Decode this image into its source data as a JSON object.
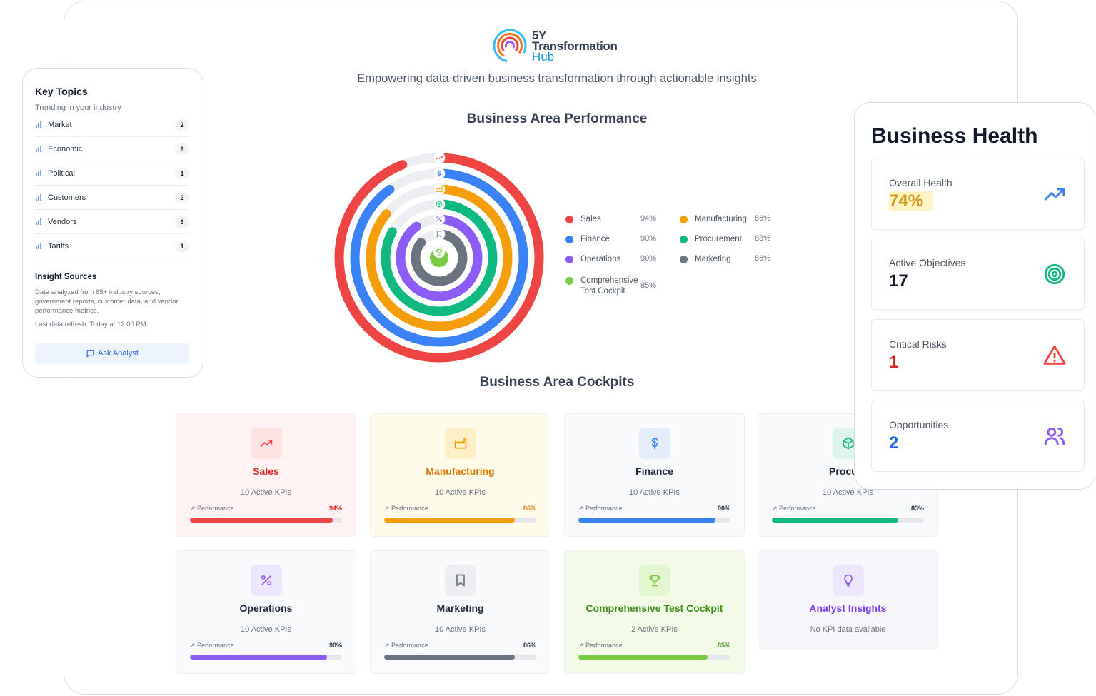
{
  "logo": {
    "line1": "5Y",
    "line2": "Transformation",
    "line3": "Hub"
  },
  "tagline": "Empowering data-driven business transformation through actionable insights",
  "performance_title": "Business Area Performance",
  "cockpits_title": "Business Area Cockpits",
  "chart_data": {
    "type": "radial-bar",
    "title": "Business Area Performance",
    "ylim": [
      0,
      100
    ],
    "series": [
      {
        "name": "Sales",
        "value": 94,
        "value_label": "94%",
        "color": "#ef4444",
        "icon": "trending-up-icon"
      },
      {
        "name": "Finance",
        "value": 90,
        "value_label": "90%",
        "color": "#3b82f6",
        "icon": "dollar-icon"
      },
      {
        "name": "Manufacturing",
        "value": 86,
        "value_label": "86%",
        "color": "#f59e0b",
        "icon": "factory-icon"
      },
      {
        "name": "Procurement",
        "value": 83,
        "value_label": "83%",
        "color": "#10b981",
        "icon": "box-icon"
      },
      {
        "name": "Operations",
        "value": 90,
        "value_label": "90%",
        "color": "#8b5cf6",
        "icon": "percent-icon"
      },
      {
        "name": "Marketing",
        "value": 86,
        "value_label": "86%",
        "color": "#6b7280",
        "icon": "bookmark-icon"
      },
      {
        "name": "Comprehensive Test Cockpit",
        "value": 85,
        "value_label": "85%",
        "color": "#7ac943",
        "icon": "trophy-icon"
      }
    ],
    "legend": [
      {
        "label": "Sales",
        "value": "94%",
        "color": "#ef4444"
      },
      {
        "label": "Manufacturing",
        "value": "86%",
        "color": "#f59e0b"
      },
      {
        "label": "Finance",
        "value": "90%",
        "color": "#3b82f6"
      },
      {
        "label": "Procurement",
        "value": "83%",
        "color": "#10b981"
      },
      {
        "label": "Operations",
        "value": "90%",
        "color": "#8b5cf6"
      },
      {
        "label": "Marketing",
        "value": "86%",
        "color": "#6b7280"
      },
      {
        "label": "Comprehensive Test Cockpit",
        "value": "85%",
        "color": "#7ac943"
      }
    ]
  },
  "cockpits": [
    {
      "title": "Sales",
      "kpis": "10 Active KPIs",
      "perf_label": "Performance",
      "perf_value": "94%",
      "perf": 94,
      "color": "#ef4444",
      "title_color": "#dc2626",
      "bg": "#fef2f2",
      "icon_bg": "#fde2e2",
      "icon": "trending-up-icon"
    },
    {
      "title": "Manufacturing",
      "kpis": "10 Active KPIs",
      "perf_label": "Performance",
      "perf_value": "86%",
      "perf": 86,
      "color": "#f59e0b",
      "title_color": "#d97706",
      "bg": "#fffbeb",
      "icon_bg": "#fdf0c8",
      "icon": "factory-icon"
    },
    {
      "title": "Finance",
      "kpis": "10 Active KPIs",
      "perf_label": "Performance",
      "perf_value": "90%",
      "perf": 90,
      "color": "#3b82f6",
      "title_color": "#1f2937",
      "bg": "#f8fafc",
      "icon_bg": "#e5edfb",
      "icon": "dollar-icon"
    },
    {
      "title": "Procure",
      "kpis": "10 Active KPIs",
      "perf_label": "Performance",
      "perf_value": "83%",
      "perf": 83,
      "color": "#10b981",
      "title_color": "#1f2937",
      "bg": "#f8fafc",
      "icon_bg": "#dff5ec",
      "icon": "box-icon"
    },
    {
      "title": "Operations",
      "kpis": "10 Active KPIs",
      "perf_label": "Performance",
      "perf_value": "90%",
      "perf": 90,
      "color": "#8b5cf6",
      "title_color": "#1f2937",
      "bg": "#f8fafc",
      "icon_bg": "#ede7fd",
      "icon": "percent-icon"
    },
    {
      "title": "Marketing",
      "kpis": "10 Active KPIs",
      "perf_label": "Performance",
      "perf_value": "86%",
      "perf": 86,
      "color": "#6b7280",
      "title_color": "#1f2937",
      "bg": "#f8fafc",
      "icon_bg": "#eceef1",
      "icon": "bookmark-icon"
    },
    {
      "title": "Comprehensive Test Cockpit",
      "kpis": "2 Active KPIs",
      "perf_label": "Performance",
      "perf_value": "85%",
      "perf": 85,
      "color": "#7ac943",
      "title_color": "#3f8a1c",
      "bg": "#f3fbe8",
      "icon_bg": "#e3f6cf",
      "icon": "trophy-icon"
    },
    {
      "title": "Analyst Insights",
      "kpis": "No KPI data available",
      "color": "#8b5cf6",
      "title_color": "#7c3aed",
      "bg": "#f7f7fb",
      "icon_bg": "#ede7fd",
      "icon": "lightbulb-icon"
    }
  ],
  "key_topics": {
    "title": "Key Topics",
    "subtitle": "Trending in your industry",
    "items": [
      {
        "label": "Market",
        "count": "2"
      },
      {
        "label": "Economic",
        "count": "6"
      },
      {
        "label": "Political",
        "count": "1"
      },
      {
        "label": "Customers",
        "count": "2"
      },
      {
        "label": "Vendors",
        "count": "3"
      },
      {
        "label": "Tariffs",
        "count": "1"
      }
    ],
    "insight_title": "Insight Sources",
    "insight_desc": "Data analyzed from 65+ industry sources, government reports, customer data, and vendor performance metrics.",
    "refresh": "Last data refresh: Today at 12:00 PM",
    "ask_label": "Ask Analyst"
  },
  "health": {
    "title": "Business Health",
    "cards": [
      {
        "label": "Overall Health",
        "value": "74%",
        "color": "#d49b16",
        "icon": "trending-up-icon",
        "icon_color": "#3b82f6"
      },
      {
        "label": "Active Objectives",
        "value": "17",
        "color": "#111827",
        "icon": "target-icon",
        "icon_color": "#10b981"
      },
      {
        "label": "Critical Risks",
        "value": "1",
        "color": "#dc2626",
        "icon": "warning-icon",
        "icon_color": "#ef4444"
      },
      {
        "label": "Opportunities",
        "value": "2",
        "color": "#2563eb",
        "icon": "users-icon",
        "icon_color": "#8b5cf6"
      }
    ]
  }
}
